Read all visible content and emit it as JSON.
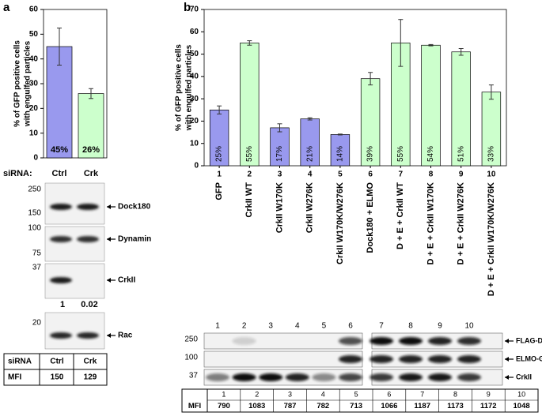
{
  "chart_data": [
    {
      "type": "bar",
      "panel": "a",
      "ylabel": [
        "% of GFP positive cells",
        "with engulfed particles"
      ],
      "category_title": "siRNA:",
      "categories": [
        "Ctrl",
        "Crk"
      ],
      "values": [
        45,
        26
      ],
      "errors": [
        7.5,
        2
      ],
      "value_labels": [
        "45%",
        "26%"
      ],
      "colors": [
        "#9999ee",
        "#ccffcc"
      ],
      "ylim": [
        0,
        60
      ],
      "yticks": [
        0,
        10,
        20,
        30,
        40,
        50,
        60
      ]
    },
    {
      "type": "bar",
      "panel": "b",
      "ylabel": [
        "% of GFP positive cells",
        "with engulfed particles"
      ],
      "lanes": [
        1,
        2,
        3,
        4,
        5,
        6,
        7,
        8,
        9,
        10
      ],
      "categories": [
        "GFP",
        "CrkII WT",
        "CrkII W170K",
        "CrkII W276K",
        "CrkII W170K/W276K",
        "Dock180 + ELMO",
        "D + E + CrkII WT",
        "D + E + CrkII W170K",
        "D + E + CrkII W276K",
        "D + E + CrkII W170K/W276K"
      ],
      "values": [
        25,
        55,
        17,
        21,
        14,
        39,
        55,
        54,
        51,
        33
      ],
      "errors": [
        1.8,
        1,
        1.8,
        0.5,
        0.2,
        2.8,
        10.5,
        0.3,
        1.5,
        3.2
      ],
      "value_labels": [
        "25%",
        "55%",
        "17%",
        "21%",
        "14%",
        "39%",
        "55%",
        "54%",
        "51%",
        "33%"
      ],
      "colors": [
        "#9999ee",
        "#ccffcc",
        "#9999ee",
        "#9999ee",
        "#9999ee",
        "#ccffcc",
        "#ccffcc",
        "#ccffcc",
        "#ccffcc",
        "#ccffcc"
      ],
      "ylim": [
        0,
        70
      ],
      "yticks": [
        0,
        10,
        20,
        30,
        40,
        50,
        60,
        70
      ]
    }
  ],
  "blots_a": [
    {
      "label": "Dock180",
      "markers": [
        250,
        150
      ]
    },
    {
      "label": "Dynamin",
      "markers": [
        100,
        75
      ]
    },
    {
      "label": "CrkII",
      "markers": [
        37
      ],
      "quant": [
        1,
        0.02
      ]
    },
    {
      "label": "Rac",
      "markers": [
        20
      ]
    }
  ],
  "table_a": {
    "rows": [
      [
        "siRNA",
        "Ctrl",
        "Crk"
      ],
      [
        "MFI",
        150,
        129
      ]
    ]
  },
  "blots_b": [
    {
      "label": "FLAG-Dock",
      "marker": 250
    },
    {
      "label": "ELMO-GFP",
      "marker": 100
    },
    {
      "label": "CrkII",
      "marker": 37
    }
  ],
  "table_b": {
    "header": [
      1,
      2,
      3,
      4,
      5,
      6,
      7,
      8,
      9,
      10
    ],
    "rows": [
      [
        "MFI",
        790,
        1083,
        787,
        782,
        713,
        1066,
        1187,
        1173,
        1172,
        1048
      ]
    ]
  }
}
